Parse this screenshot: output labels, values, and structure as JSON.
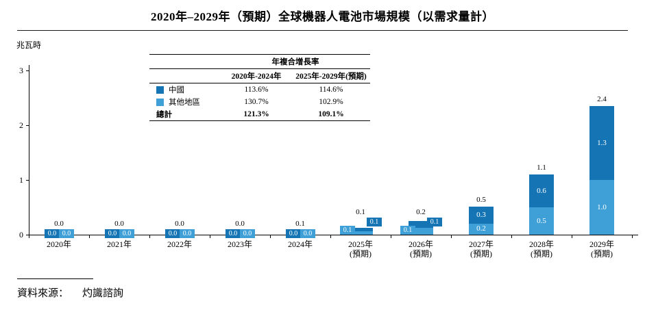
{
  "title": "2020年–2029年（預期）全球機器人電池市場規模（以需求量計）",
  "cagr": {
    "title": "年複合增長率",
    "col1": "2020年-2024年",
    "col2": "2025年-2029年(預期)",
    "rows": [
      {
        "label": "中國",
        "v1": "113.6%",
        "v2": "114.6%"
      },
      {
        "label": "其他地區",
        "v1": "130.7%",
        "v2": "102.9%"
      },
      {
        "label": "總計",
        "v1": "121.3%",
        "v2": "109.1%"
      }
    ]
  },
  "source": {
    "label": "資料來源：",
    "value": "灼識諮詢"
  },
  "colors": {
    "china": "#1474b4",
    "others": "#3fa0d8"
  },
  "chart_data": {
    "type": "bar",
    "stacked": true,
    "title": "2020年–2029年（預期）全球機器人電池市場規模（以需求量計）",
    "ylabel": "兆瓦時",
    "ylim": [
      0,
      3
    ],
    "yticks": [
      0,
      1,
      2,
      3
    ],
    "grid": false,
    "legend_position": "top-center-table",
    "categories": [
      {
        "label": "2020年",
        "sub": ""
      },
      {
        "label": "2021年",
        "sub": ""
      },
      {
        "label": "2022年",
        "sub": ""
      },
      {
        "label": "2023年",
        "sub": ""
      },
      {
        "label": "2024年",
        "sub": ""
      },
      {
        "label": "2025年",
        "sub": "(預期)"
      },
      {
        "label": "2026年",
        "sub": "(預期)"
      },
      {
        "label": "2027年",
        "sub": "(預期)"
      },
      {
        "label": "2028年",
        "sub": "(預期)"
      },
      {
        "label": "2029年",
        "sub": "(預期)"
      }
    ],
    "series": [
      {
        "name": "中國",
        "color_key": "china",
        "values": [
          0.0,
          0.0,
          0.0,
          0.0,
          0.0,
          0.1,
          0.1,
          0.3,
          0.6,
          1.3
        ],
        "labels": [
          "0.0",
          "0.0",
          "0.0",
          "0.0",
          "0.0",
          "0.1",
          "0.1",
          "0.3",
          "0.6",
          "1.3"
        ],
        "values_est": [
          0.002,
          0.005,
          0.009,
          0.013,
          0.03,
          0.062,
          0.131,
          0.305,
          0.6,
          1.35
        ]
      },
      {
        "name": "其他地區",
        "color_key": "others",
        "values": [
          0.0,
          0.0,
          0.0,
          0.0,
          0.0,
          0.1,
          0.1,
          0.2,
          0.5,
          1.0
        ],
        "labels": [
          "0.0",
          "0.0",
          "0.0",
          "0.0",
          "0.0",
          "0.1",
          "0.1",
          "0.2",
          "0.5",
          "1.0"
        ],
        "values_est": [
          0.002,
          0.004,
          0.008,
          0.012,
          0.028,
          0.058,
          0.119,
          0.205,
          0.5,
          1.0
        ]
      }
    ],
    "totals": [
      "0.0",
      "0.0",
      "0.0",
      "0.0",
      "0.1",
      "0.1",
      "0.2",
      "0.5",
      "1.1",
      "2.4"
    ],
    "totals_num": [
      0.0,
      0.0,
      0.0,
      0.0,
      0.1,
      0.1,
      0.2,
      0.5,
      1.1,
      2.4
    ]
  }
}
